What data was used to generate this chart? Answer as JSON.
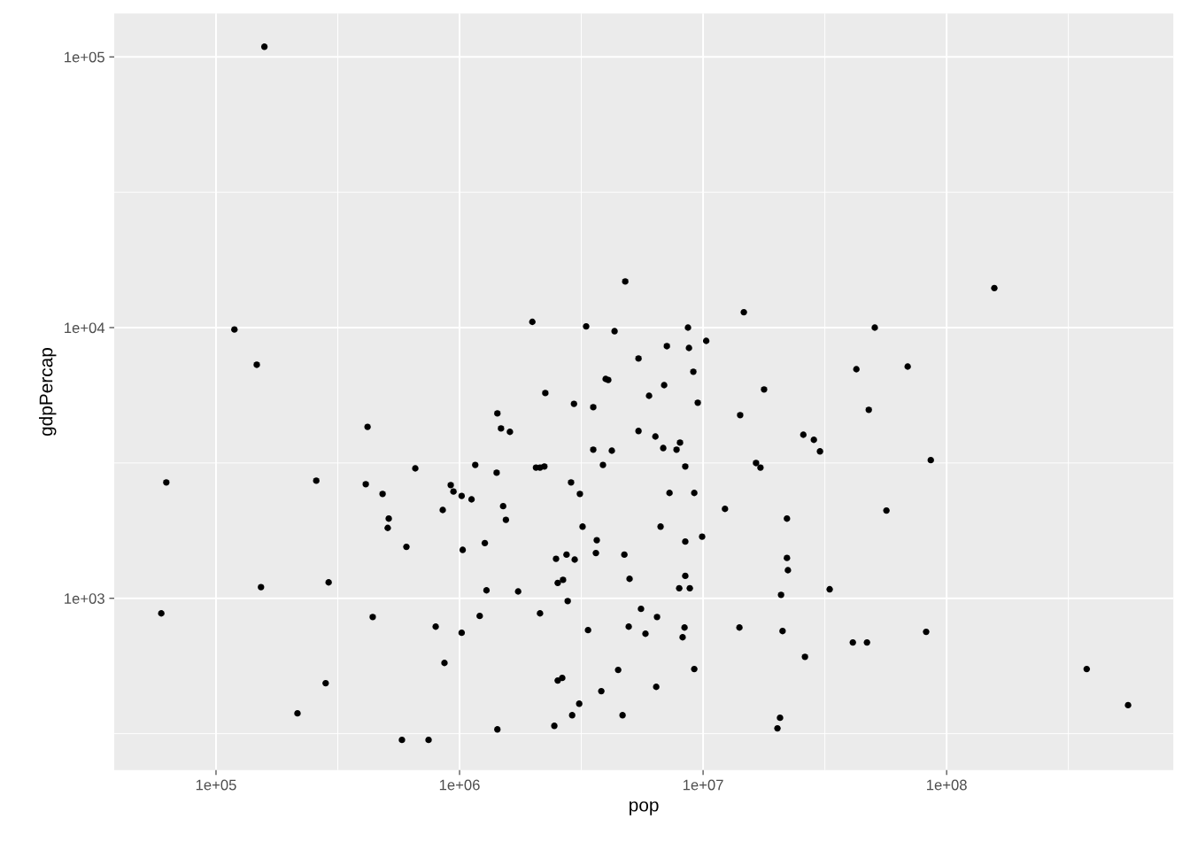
{
  "chart_data": {
    "type": "scatter",
    "xlabel": "pop",
    "ylabel": "gdpPercap",
    "log": "xy",
    "grid": true,
    "marker": "circle",
    "xlim": [
      38200,
      853000000
    ],
    "ylim": [
      232,
      144500
    ],
    "xticks": [
      {
        "value": 100000,
        "label": "1e+05"
      },
      {
        "value": 316228,
        "label": null
      },
      {
        "value": 1000000,
        "label": "1e+06"
      },
      {
        "value": 3162278,
        "label": null
      },
      {
        "value": 10000000,
        "label": "1e+07"
      },
      {
        "value": 31622777,
        "label": null
      },
      {
        "value": 100000000,
        "label": "1e+08"
      },
      {
        "value": 316227766,
        "label": null
      }
    ],
    "yticks": [
      {
        "value": 316.2,
        "label": null
      },
      {
        "value": 1000,
        "label": "1e+03"
      },
      {
        "value": 3162,
        "label": null
      },
      {
        "value": 10000,
        "label": "1e+04"
      },
      {
        "value": 31623,
        "label": null
      },
      {
        "value": 100000,
        "label": "1e+05"
      }
    ],
    "series": [
      {
        "color": "#000000",
        "x": [
          158000,
          59600,
          62500,
          119000,
          147000,
          153000,
          216000,
          258000,
          282000,
          290000,
          419000,
          412000,
          440000,
          483000,
          512000,
          507000,
          580000,
          605000,
          658000,
          746000,
          798000,
          853000,
          867000,
          920000,
          944000,
          1020000,
          1030000,
          1020000,
          1120000,
          1160000,
          1210000,
          1270000,
          1290000,
          1420000,
          1430000,
          1430000,
          1480000,
          1510000,
          1550000,
          1610000,
          1740000,
          1990000,
          2060000,
          2140000,
          2230000,
          2140000,
          2250000,
          2450000,
          2490000,
          2530000,
          2530000,
          2640000,
          2660000,
          2750000,
          2780000,
          2870000,
          2900000,
          2950000,
          2970000,
          3100000,
          3120000,
          3200000,
          3310000,
          3370000,
          3540000,
          3540000,
          3660000,
          3630000,
          3820000,
          3880000,
          3980000,
          4080000,
          4220000,
          4330000,
          4480000,
          4670000,
          4750000,
          4790000,
          4950000,
          4990000,
          5430000,
          5430000,
          5560000,
          5800000,
          6000000,
          6370000,
          6420000,
          6470000,
          6690000,
          6860000,
          6920000,
          7100000,
          7280000,
          7780000,
          7980000,
          8040000,
          8240000,
          8390000,
          8450000,
          8450000,
          8450000,
          8670000,
          8750000,
          8820000,
          9120000,
          9200000,
          9200000,
          9510000,
          9910000,
          10300000,
          12300000,
          14100000,
          14200000,
          14700000,
          16500000,
          17200000,
          17800000,
          20200000,
          20700000,
          20900000,
          21200000,
          22100000,
          22100000,
          22300000,
          25800000,
          26200000,
          28500000,
          30200000,
          33100000,
          41200000,
          42600000,
          47100000,
          47900000,
          50700000,
          56600000,
          69200000,
          82400000,
          86100000,
          157000000,
          376000000,
          556000000
        ],
        "values": [
          109000,
          880,
          2680,
          9840,
          7290,
          1100,
          376,
          2720,
          486,
          1145,
          4300,
          2640,
          853,
          2430,
          1970,
          1820,
          300,
          1550,
          3020,
          300,
          786,
          2120,
          577,
          2620,
          2480,
          2390,
          1510,
          746,
          2320,
          3110,
          861,
          1600,
          1070,
          2910,
          4820,
          328,
          4240,
          2190,
          1950,
          4120,
          1060,
          10500,
          3040,
          3040,
          3070,
          880,
          5730,
          338,
          1400,
          497,
          1140,
          508,
          1170,
          1450,
          977,
          2680,
          370,
          5230,
          1390,
          408,
          2430,
          1840,
          10100,
          763,
          5080,
          3540,
          1640,
          1470,
          454,
          3110,
          6460,
          6410,
          3510,
          9700,
          544,
          370,
          1450,
          14800,
          786,
          1180,
          7690,
          4150,
          914,
          740,
          5600,
          3960,
          471,
          853,
          1840,
          3590,
          6130,
          8540,
          2450,
          3540,
          1090,
          3760,
          718,
          780,
          1210,
          1620,
          3070,
          10000,
          8410,
          1090,
          6870,
          2450,
          548,
          5280,
          1690,
          8930,
          2140,
          780,
          4750,
          11400,
          3160,
          3040,
          5910,
          331,
          362,
          1030,
          757,
          1410,
          1970,
          1270,
          4020,
          608,
          3850,
          3490,
          1080,
          687,
          7020,
          687,
          4970,
          10000,
          2110,
          7180,
          752,
          3240,
          14000,
          548,
          403
        ]
      }
    ]
  }
}
